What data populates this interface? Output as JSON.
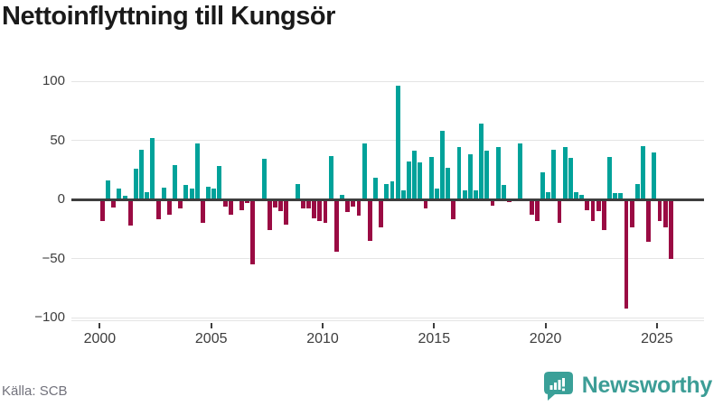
{
  "header": {
    "title": "Nettoinflyttning till Kungsör"
  },
  "footer": {
    "source": "Källa: SCB",
    "brand": "Newsworthy"
  },
  "icons": {
    "brand_icon": "newsworthy-bar-chart-bubble-icon"
  },
  "chart_data": {
    "type": "bar",
    "title": "Nettoinflyttning till Kungsör",
    "x_frequency": "quarterly",
    "x_range": [
      "2000Q1",
      "2025Q3"
    ],
    "start_year": 2000,
    "start_quarter": 1,
    "values": [
      -18,
      16,
      -7,
      9,
      3,
      -22,
      26,
      42,
      6,
      52,
      -17,
      10,
      -13,
      29,
      -8,
      12,
      9,
      47,
      -20,
      11,
      9,
      28,
      -6,
      -13,
      0,
      -9,
      -3,
      -55,
      0,
      34,
      -26,
      -7,
      -10,
      -21,
      0,
      13,
      -8,
      -8,
      -16,
      -18,
      -20,
      37,
      -44,
      4,
      -11,
      -6,
      -14,
      47,
      -35,
      18,
      -24,
      13,
      15,
      96,
      8,
      32,
      41,
      31,
      -8,
      36,
      9,
      58,
      27,
      -17,
      44,
      8,
      38,
      8,
      64,
      41,
      -5,
      44,
      12,
      -2,
      0,
      47,
      0,
      -13,
      -18,
      23,
      6,
      42,
      -20,
      44,
      35,
      6,
      4,
      -9,
      -18,
      -10,
      -26,
      36,
      5,
      5,
      -92,
      -24,
      13,
      45,
      -36,
      40,
      -18,
      -24,
      -50
    ],
    "ylim": [
      -100,
      100
    ],
    "yticks": [
      100,
      50,
      0,
      -50,
      -100
    ],
    "ytick_labels": [
      "100",
      "50",
      "0",
      "−50",
      "−100"
    ],
    "xticks": [
      2000,
      2005,
      2010,
      2015,
      2020,
      2025
    ],
    "xtick_labels": [
      "2000",
      "2005",
      "2010",
      "2015",
      "2020",
      "2025"
    ],
    "grid": true,
    "legend": false,
    "colors": {
      "positive": "#00a29a",
      "negative": "#9a0b43",
      "zero_line": "#3e3e3e",
      "gridline": "#e4e4e4",
      "axis_text": "#3d3d3d",
      "brand_teal": "#3c9d96"
    }
  }
}
